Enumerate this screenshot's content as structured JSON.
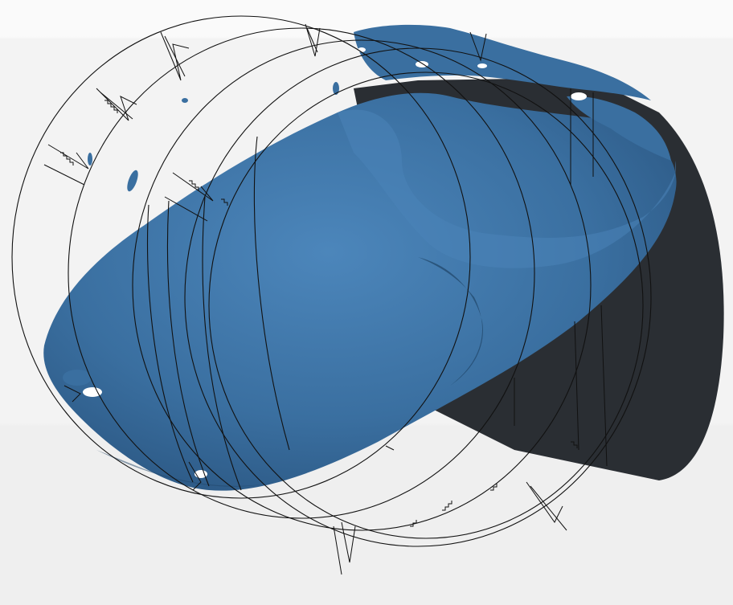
{
  "viewport": {
    "background_top": "#fafafa",
    "background_bottom": "#f0f0f0",
    "surface_color": "#3a6fa0",
    "surface_light": "#5a8fc0",
    "surface_dark": "#1f4466",
    "solid_color": "#2a2e33",
    "wireframe_color": "#111111",
    "ring_count": 4
  }
}
